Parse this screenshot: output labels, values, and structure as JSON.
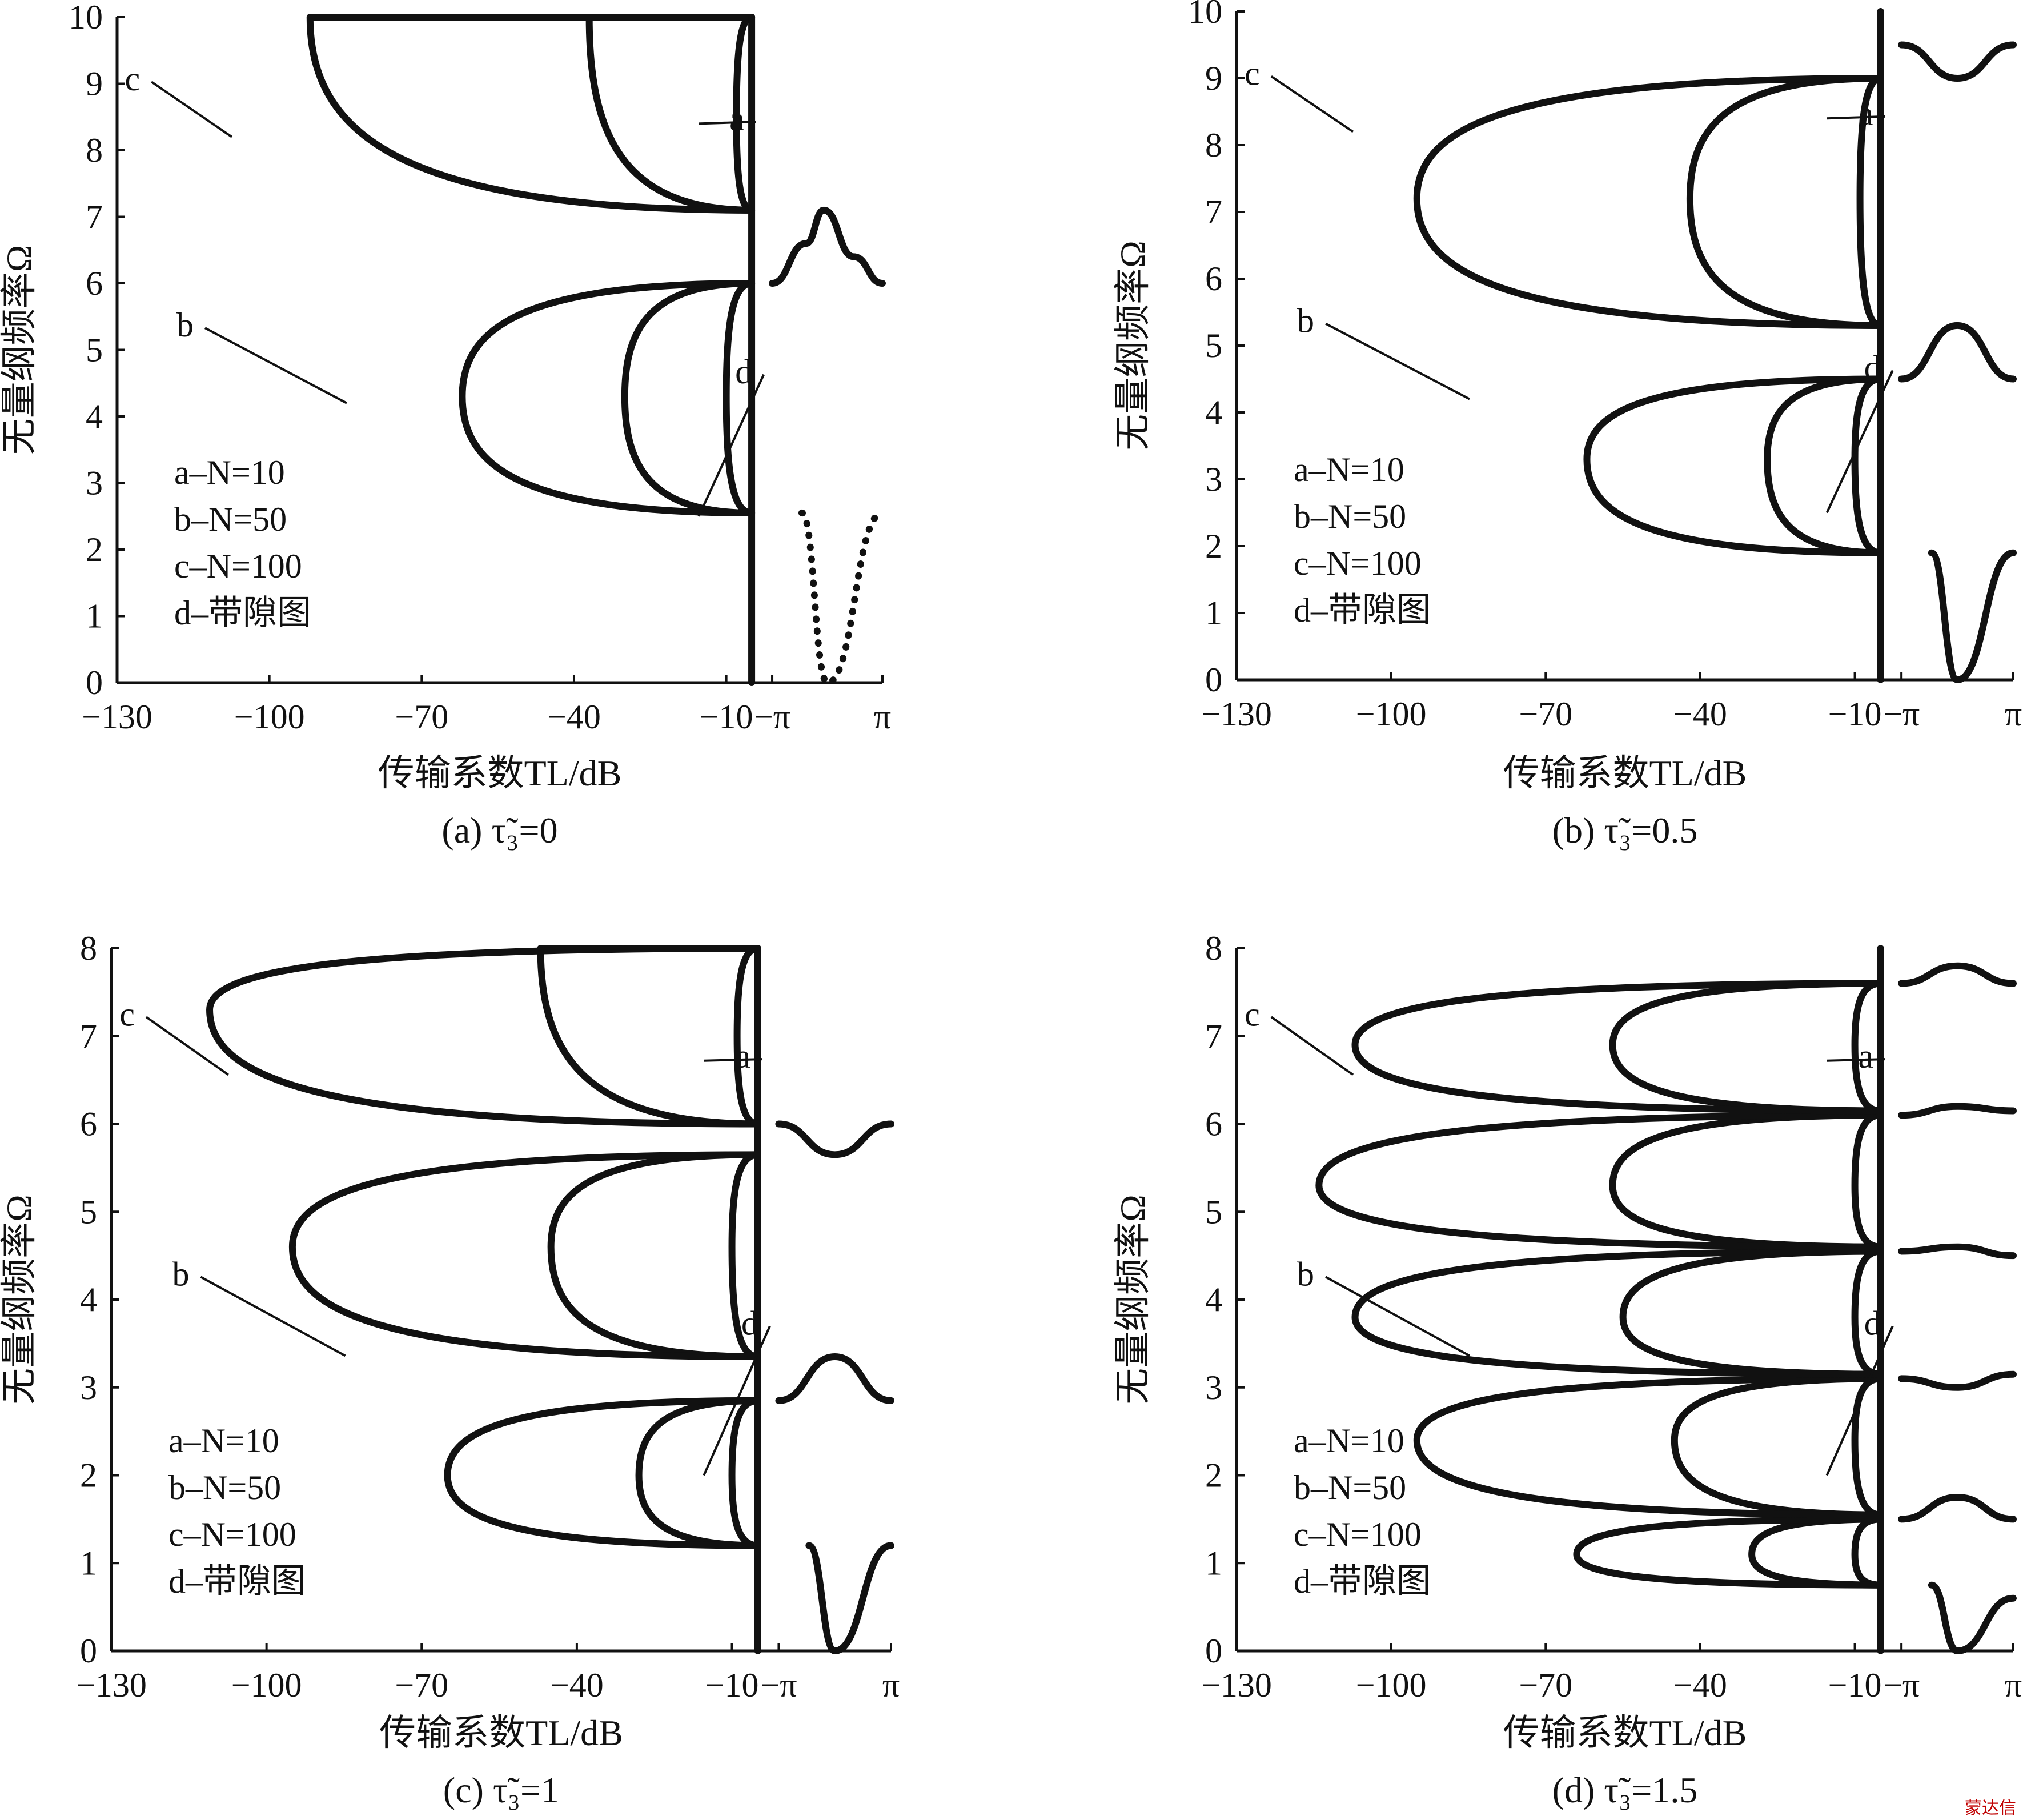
{
  "figure": {
    "watermark": "蒙达信",
    "panels": [
      {
        "id": "a",
        "caption": "(a) τ̃₃=0",
        "caption_parts": {
          "prefix": "(a)",
          "symbol": "τ",
          "sub": "3",
          "value": "=0"
        },
        "xlabel": "传输系数TL/dB",
        "xlabel_parts": {
          "text": "传输系数",
          "italic": "TL",
          "unit": "/dB"
        },
        "ylabel": "无量纲频率Ω",
        "ylabel_parts": {
          "text": "无量纲频率",
          "italic": "Ω"
        },
        "xticks": [
          "−130",
          "−100",
          "−70",
          "−40",
          "−10",
          "−π",
          "π"
        ],
        "yticks": [
          "0",
          "1",
          "2",
          "3",
          "4",
          "5",
          "6",
          "7",
          "8",
          "9",
          "10"
        ],
        "ylim": [
          0,
          10
        ],
        "legend": [
          "a–N=10",
          "b–N=50",
          "c–N=100",
          "d–带隙图"
        ],
        "curve_labels": [
          "a",
          "b",
          "c",
          "d"
        ]
      },
      {
        "id": "b",
        "caption": "(b) τ̃₃=0.5",
        "caption_parts": {
          "prefix": "(b)",
          "symbol": "τ",
          "sub": "3",
          "value": "=0.5"
        },
        "xlabel": "传输系数TL/dB",
        "xlabel_parts": {
          "text": "传输系数",
          "italic": "TL",
          "unit": "/dB"
        },
        "ylabel": "无量纲频率Ω",
        "ylabel_parts": {
          "text": "无量纲频率",
          "italic": "Ω"
        },
        "xticks": [
          "−130",
          "−100",
          "−70",
          "−40",
          "−10",
          "−π",
          "π"
        ],
        "yticks": [
          "0",
          "1",
          "2",
          "3",
          "4",
          "5",
          "6",
          "7",
          "8",
          "9",
          "10"
        ],
        "ylim": [
          0,
          10
        ],
        "legend": [
          "a–N=10",
          "b–N=50",
          "c–N=100",
          "d–带隙图"
        ],
        "curve_labels": [
          "a",
          "b",
          "c",
          "d"
        ]
      },
      {
        "id": "c",
        "caption": "(c) τ̃₃=1",
        "caption_parts": {
          "prefix": "(c)",
          "symbol": "τ",
          "sub": "3",
          "value": "=1"
        },
        "xlabel": "传输系数TL/dB",
        "xlabel_parts": {
          "text": "传输系数",
          "italic": "TL",
          "unit": "/dB"
        },
        "ylabel": "无量纲频率Ω",
        "ylabel_parts": {
          "text": "无量纲频率",
          "italic": "Ω"
        },
        "xticks": [
          "−130",
          "−100",
          "−70",
          "−40",
          "−10",
          "−π",
          "π"
        ],
        "yticks": [
          "0",
          "1",
          "2",
          "3",
          "4",
          "5",
          "6",
          "7",
          "8"
        ],
        "ylim": [
          0,
          8
        ],
        "legend": [
          "a–N=10",
          "b–N=50",
          "c–N=100",
          "d–带隙图"
        ],
        "curve_labels": [
          "a",
          "b",
          "c",
          "d"
        ]
      },
      {
        "id": "d",
        "caption": "(d) τ̃₃=1.5",
        "caption_parts": {
          "prefix": "(d)",
          "symbol": "τ",
          "sub": "3",
          "value": "=1.5"
        },
        "xlabel": "传输系数TL/dB",
        "xlabel_parts": {
          "text": "传输系数",
          "italic": "TL",
          "unit": "/dB"
        },
        "ylabel": "无量纲频率Ω",
        "ylabel_parts": {
          "text": "无量纲频率",
          "italic": "Ω"
        },
        "xticks": [
          "−130",
          "−100",
          "−70",
          "−40",
          "−10",
          "−π",
          "π"
        ],
        "yticks": [
          "0",
          "1",
          "2",
          "3",
          "4",
          "5",
          "6",
          "7",
          "8"
        ],
        "ylim": [
          0,
          8
        ],
        "legend": [
          "a–N=10",
          "b–N=50",
          "c–N=100",
          "d–带隙图"
        ],
        "curve_labels": [
          "a",
          "b",
          "c",
          "d"
        ]
      }
    ]
  },
  "chart_data": [
    {
      "type": "line",
      "panel": "a",
      "x_units": "TL/dB (left segment, -130..-10) and wavenumber (right segment, -π..π)",
      "ylim": [
        0,
        10
      ],
      "grid": false,
      "legend_position": "bottom-left",
      "series": [
        {
          "name": "a–N=10",
          "passbands": [
            [
              0,
              2.55
            ],
            [
              2.55,
              6.0
            ],
            [
              6.0,
              7.1
            ],
            [
              7.1,
              10
            ]
          ],
          "stopbands": [
            [
              2.55,
              6.0
            ],
            [
              7.1,
              10
            ]
          ],
          "min_TL": [
            [
              4.3,
              -10
            ],
            [
              8.5,
              -8
            ]
          ]
        },
        {
          "name": "b–N=50",
          "stopbands": [
            [
              2.55,
              6.0
            ],
            [
              7.1,
              10
            ]
          ],
          "min_TL": [
            [
              4.3,
              -30
            ],
            [
              10,
              -37
            ]
          ]
        },
        {
          "name": "c–N=100",
          "stopbands": [
            [
              2.55,
              6.0
            ],
            [
              7.1,
              10
            ]
          ],
          "min_TL": [
            [
              4.3,
              -62
            ],
            [
              10,
              -92
            ]
          ]
        },
        {
          "name": "d–带隙图",
          "dispersion": [
            {
              "band": 1,
              "points": [
                [
                  -1.45,
                  2.55
                ],
                [
                  0,
                  0
                ],
                [
                  3.1416,
                  2.55
                ]
              ]
            },
            {
              "band": 2,
              "points": [
                [
                  -3.1416,
                  6.0
                ],
                [
                  -1.2,
                  6.6
                ],
                [
                  -0.2,
                  7.1
                ],
                [
                  1.5,
                  6.4
                ],
                [
                  3.1416,
                  6.0
                ]
              ]
            }
          ]
        }
      ]
    },
    {
      "type": "line",
      "panel": "b",
      "ylim": [
        0,
        10
      ],
      "grid": false,
      "legend_position": "bottom-left",
      "series": [
        {
          "name": "a–N=10",
          "stopbands": [
            [
              1.9,
              4.5
            ],
            [
              5.3,
              9.0
            ]
          ],
          "min_TL": [
            [
              3.3,
              -10
            ],
            [
              7.2,
              -9
            ]
          ]
        },
        {
          "name": "b–N=50",
          "stopbands": [
            [
              1.9,
              4.5
            ],
            [
              5.3,
              9.0
            ]
          ],
          "min_TL": [
            [
              3.3,
              -27
            ],
            [
              7.2,
              -42
            ]
          ]
        },
        {
          "name": "c–N=100",
          "stopbands": [
            [
              1.9,
              4.5
            ],
            [
              5.3,
              9.0
            ]
          ],
          "min_TL": [
            [
              3.3,
              -62
            ],
            [
              7.2,
              -95
            ]
          ]
        },
        {
          "name": "d–带隙图",
          "dispersion": [
            {
              "band": 1,
              "points": [
                [
                  -1.45,
                  1.9
                ],
                [
                  0,
                  0
                ],
                [
                  3.1416,
                  1.9
                ]
              ]
            },
            {
              "band": 2,
              "points": [
                [
                  -3.1416,
                  4.5
                ],
                [
                  0,
                  5.3
                ],
                [
                  3.1416,
                  4.5
                ]
              ]
            },
            {
              "band": 3,
              "points": [
                [
                  -3.1416,
                  9.5
                ],
                [
                  0,
                  9.0
                ],
                [
                  3.1416,
                  9.5
                ]
              ]
            }
          ]
        }
      ]
    },
    {
      "type": "line",
      "panel": "c",
      "ylim": [
        0,
        8
      ],
      "grid": false,
      "legend_position": "bottom-left",
      "series": [
        {
          "name": "a–N=10",
          "stopbands": [
            [
              1.2,
              2.85
            ],
            [
              3.35,
              5.65
            ],
            [
              6.0,
              8.0
            ]
          ],
          "min_TL": [
            [
              2.0,
              -10
            ],
            [
              4.6,
              -10
            ],
            [
              7.0,
              -9
            ]
          ]
        },
        {
          "name": "b–N=50",
          "stopbands": [
            [
              1.2,
              2.85
            ],
            [
              3.35,
              5.65
            ],
            [
              6.0,
              8.0
            ]
          ],
          "min_TL": [
            [
              2.0,
              -28
            ],
            [
              4.6,
              -45
            ],
            [
              8.0,
              -47
            ]
          ]
        },
        {
          "name": "c–N=100",
          "stopbands": [
            [
              1.2,
              2.85
            ],
            [
              3.35,
              5.65
            ],
            [
              6.0,
              8.0
            ]
          ],
          "min_TL": [
            [
              2.0,
              -65
            ],
            [
              4.6,
              -95
            ],
            [
              7.3,
              -111
            ]
          ]
        },
        {
          "name": "d–带隙图",
          "dispersion": [
            {
              "band": 1,
              "points": [
                [
                  -1.45,
                  1.2
                ],
                [
                  0,
                  0
                ],
                [
                  3.1416,
                  1.2
                ]
              ]
            },
            {
              "band": 2,
              "points": [
                [
                  -3.1416,
                  2.85
                ],
                [
                  0,
                  3.35
                ],
                [
                  3.1416,
                  2.85
                ]
              ]
            },
            {
              "band": 3,
              "points": [
                [
                  -3.1416,
                  6.0
                ],
                [
                  0,
                  5.65
                ],
                [
                  3.1416,
                  6.0
                ]
              ]
            }
          ]
        }
      ]
    },
    {
      "type": "line",
      "panel": "d",
      "ylim": [
        0,
        8
      ],
      "grid": false,
      "legend_position": "bottom-left",
      "series": [
        {
          "name": "a–N=10",
          "stopbands": [
            [
              0.75,
              1.5
            ],
            [
              1.55,
              3.1
            ],
            [
              3.15,
              4.55
            ],
            [
              4.6,
              6.1
            ],
            [
              6.15,
              7.6
            ]
          ],
          "min_TL": [
            [
              1.1,
              -10
            ],
            [
              2.4,
              -10
            ],
            [
              3.8,
              -10
            ],
            [
              5.3,
              -10
            ],
            [
              6.9,
              -10
            ]
          ]
        },
        {
          "name": "b–N=50",
          "stopbands": [
            [
              0.75,
              1.5
            ],
            [
              1.55,
              3.1
            ],
            [
              3.15,
              4.55
            ],
            [
              4.6,
              6.1
            ],
            [
              6.15,
              7.6
            ]
          ],
          "min_TL": [
            [
              1.1,
              -30
            ],
            [
              2.4,
              -45
            ],
            [
              3.8,
              -55
            ],
            [
              5.3,
              -57
            ],
            [
              6.9,
              -57
            ]
          ]
        },
        {
          "name": "c–N=100",
          "stopbands": [
            [
              0.75,
              1.5
            ],
            [
              1.55,
              3.1
            ],
            [
              3.15,
              4.55
            ],
            [
              4.6,
              6.1
            ],
            [
              6.15,
              7.6
            ]
          ],
          "min_TL": [
            [
              1.1,
              -64
            ],
            [
              2.4,
              -95
            ],
            [
              3.8,
              -107
            ],
            [
              5.3,
              -114
            ],
            [
              6.9,
              -107
            ]
          ]
        },
        {
          "name": "d–带隙图",
          "dispersion": [
            {
              "band": 1,
              "points": [
                [
                  -1.45,
                  0.75
                ],
                [
                  0,
                  0
                ],
                [
                  3.1416,
                  0.6
                ]
              ]
            },
            {
              "band": 2,
              "points": [
                [
                  -3.1416,
                  1.5
                ],
                [
                  0,
                  1.75
                ],
                [
                  3.1416,
                  1.5
                ]
              ]
            },
            {
              "band": 3,
              "points": [
                [
                  -3.1416,
                  3.1
                ],
                [
                  0,
                  3.0
                ],
                [
                  3.1416,
                  3.15
                ]
              ]
            },
            {
              "band": 4,
              "points": [
                [
                  -3.1416,
                  4.55
                ],
                [
                  0,
                  4.6
                ],
                [
                  3.1416,
                  4.5
                ]
              ]
            },
            {
              "band": 5,
              "points": [
                [
                  -3.1416,
                  6.1
                ],
                [
                  0,
                  6.2
                ],
                [
                  3.1416,
                  6.15
                ]
              ]
            },
            {
              "band": 6,
              "points": [
                [
                  -3.1416,
                  7.6
                ],
                [
                  0,
                  7.8
                ],
                [
                  3.1416,
                  7.6
                ]
              ]
            }
          ]
        }
      ]
    }
  ]
}
